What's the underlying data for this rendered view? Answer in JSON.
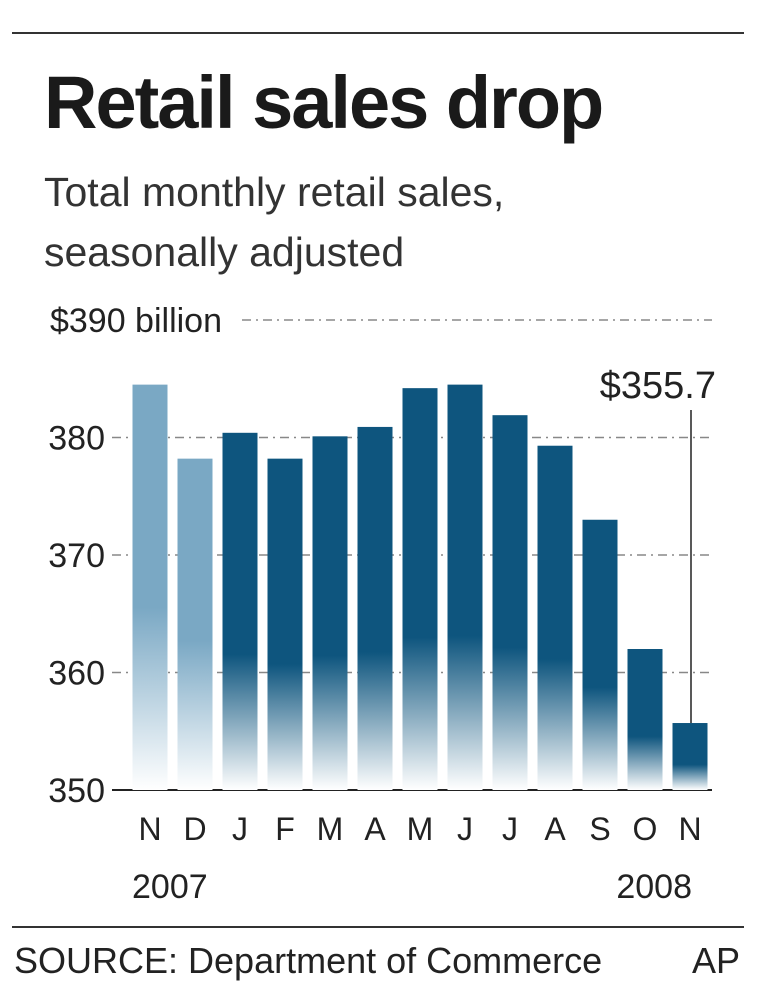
{
  "header": {
    "title": "Retail sales drop",
    "subtitle_line1": "Total monthly retail sales,",
    "subtitle_line2": "seasonally adjusted"
  },
  "footer": {
    "source": "SOURCE: Department of Commerce",
    "credit": "AP"
  },
  "colors": {
    "bar_2007": "#7aa8c4",
    "bar_2008": "#0e557e",
    "gridline": "#888888"
  },
  "chart_data": {
    "type": "bar",
    "title": "Retail sales drop",
    "subtitle": "Total monthly retail sales, seasonally adjusted",
    "categories": [
      "N",
      "D",
      "J",
      "F",
      "M",
      "A",
      "M",
      "J",
      "J",
      "A",
      "S",
      "O",
      "N"
    ],
    "year_labels": [
      {
        "label": "2007",
        "from_index": 0
      },
      {
        "label": "2008",
        "from_index": 2
      }
    ],
    "values": [
      384.5,
      378.2,
      380.4,
      378.2,
      380.1,
      380.9,
      384.2,
      384.5,
      381.9,
      379.3,
      373.0,
      362.0,
      355.7
    ],
    "ylim": [
      350,
      390
    ],
    "yticks": [
      {
        "value": 390,
        "label": "$390 billion"
      },
      {
        "value": 380,
        "label": "380"
      },
      {
        "value": 370,
        "label": "370"
      },
      {
        "value": 360,
        "label": "360"
      },
      {
        "value": 350,
        "label": "350"
      }
    ],
    "annotation": {
      "index": 12,
      "label": "$355.7"
    },
    "grid": true,
    "legend": "none"
  }
}
